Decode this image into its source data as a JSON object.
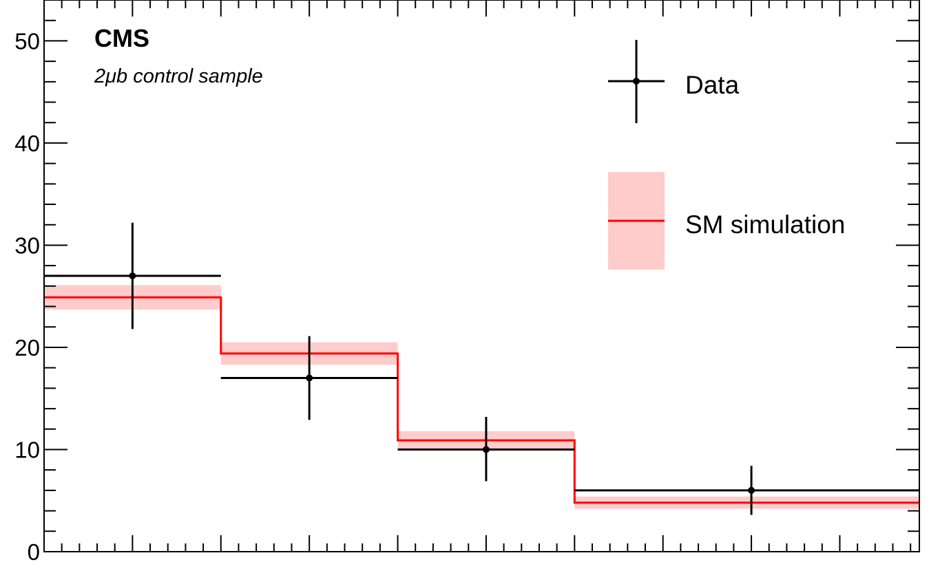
{
  "chart_data": {
    "type": "histogram",
    "annotations": {
      "experiment": "CMS",
      "sample": "2μb control sample"
    },
    "x": {
      "bin_edges": [
        0,
        1,
        2,
        3,
        4.95
      ],
      "range": [
        0,
        4.95
      ],
      "tick_labels_shown": false
    },
    "y": {
      "range": [
        0,
        54
      ],
      "major_ticks": [
        0,
        10,
        20,
        30,
        40,
        50
      ],
      "tick_labels": [
        "0",
        "10",
        "20",
        "30",
        "40",
        "50"
      ]
    },
    "series": [
      {
        "name": "Data",
        "style": "points-with-errors",
        "color": "#000000",
        "x_centers": [
          0.5,
          1.5,
          2.5,
          4.0
        ],
        "values": [
          27,
          17,
          10,
          6
        ],
        "err_up": [
          5.2,
          4.1,
          3.2,
          2.4
        ],
        "err_down": [
          5.2,
          4.1,
          3.1,
          2.4
        ]
      },
      {
        "name": "SM simulation",
        "style": "step-with-band",
        "color": "#ff0000",
        "band_color": "#ffcccc",
        "values": [
          24.9,
          19.4,
          10.9,
          4.8
        ],
        "band_up": [
          1.2,
          1.1,
          0.9,
          0.6
        ],
        "band_down": [
          1.2,
          1.1,
          0.9,
          0.6
        ]
      }
    ],
    "legend": {
      "position": "top-right",
      "entries": [
        "Data",
        "SM simulation"
      ]
    },
    "grid": false
  }
}
